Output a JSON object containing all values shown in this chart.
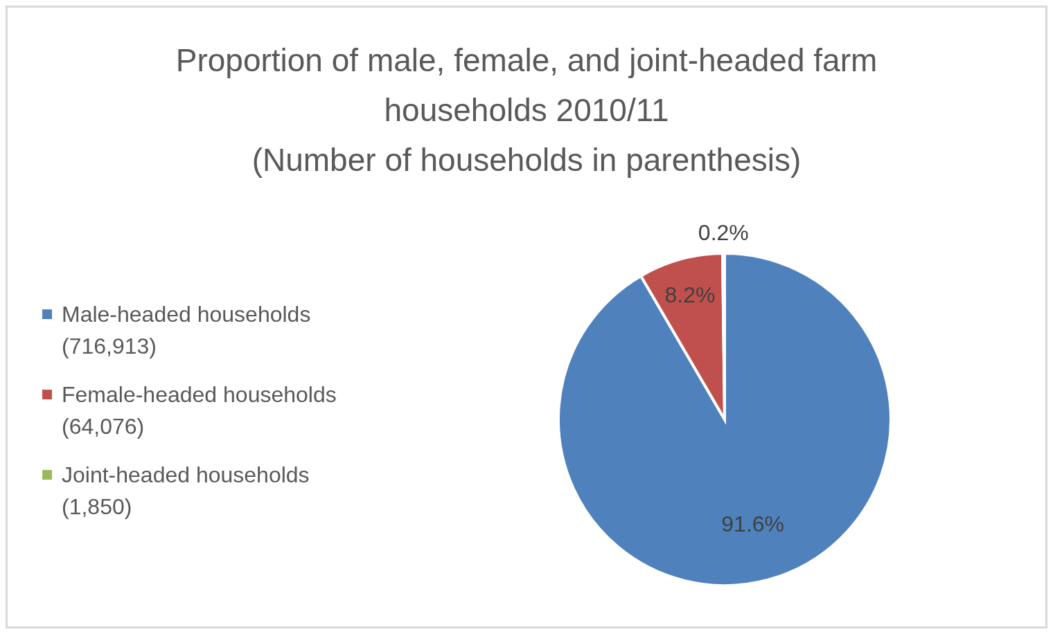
{
  "chart_data": {
    "type": "pie",
    "title": "Proportion of male, female, and joint-headed farm households  2010/11",
    "subtitle": "(Number of households in parenthesis)",
    "categories": [
      "Male-headed households (716,913)",
      "Female-headed households (64,076)",
      "Joint-headed households (1,850)"
    ],
    "values": [
      91.6,
      8.2,
      0.2
    ],
    "colors": [
      "#4f81bd",
      "#c0504d",
      "#9bbb59"
    ],
    "value_labels": [
      "91.6%",
      "8.2%",
      "0.2%"
    ],
    "legend": "left"
  }
}
